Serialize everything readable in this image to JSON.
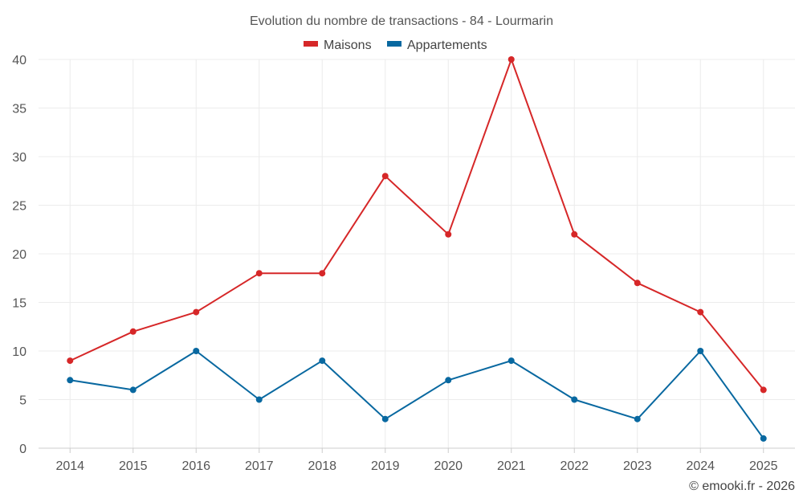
{
  "chart_data": {
    "type": "line",
    "title": "Evolution du nombre de transactions - 84 - Lourmarin",
    "xlabel": "",
    "ylabel": "",
    "categories": [
      "2014",
      "2015",
      "2016",
      "2017",
      "2018",
      "2019",
      "2020",
      "2021",
      "2022",
      "2023",
      "2024",
      "2025"
    ],
    "ylim": [
      0,
      40
    ],
    "yticks": [
      0,
      5,
      10,
      15,
      20,
      25,
      30,
      35,
      40
    ],
    "grid": true,
    "legend_position": "top-center",
    "series": [
      {
        "name": "Maisons",
        "color": "#d62728",
        "values": [
          9,
          12,
          14,
          18,
          18,
          28,
          22,
          40,
          22,
          17,
          14,
          6
        ]
      },
      {
        "name": "Appartements",
        "color": "#0868a0",
        "values": [
          7,
          6,
          10,
          5,
          9,
          3,
          7,
          9,
          5,
          3,
          10,
          1
        ]
      }
    ]
  },
  "credit": "© emooki.fr - 2026"
}
